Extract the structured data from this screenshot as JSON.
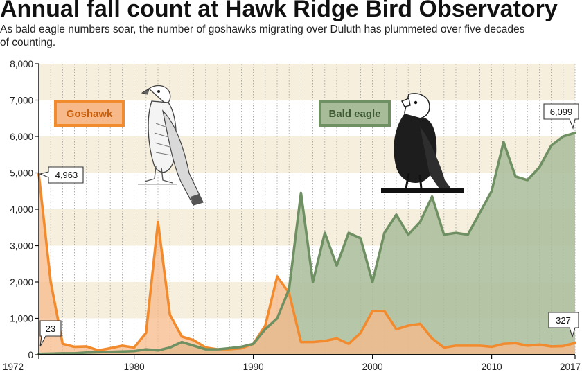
{
  "chart_data": {
    "type": "area",
    "title": "Annual fall count at Hawk Ridge Bird Observatory",
    "subtitle_line1": "As bald eagle numbers soar, the number of goshawks migrating over Duluth has plummeted over five decades",
    "subtitle_line2": "of counting.",
    "xlabel": "",
    "ylabel": "",
    "xlim": [
      1972,
      2017
    ],
    "ylim": [
      0,
      8000
    ],
    "x_ticks": [
      {
        "value": 1972,
        "label": "1972"
      },
      {
        "value": 1980,
        "label": "1980"
      },
      {
        "value": 1990,
        "label": "1990"
      },
      {
        "value": 2000,
        "label": "2000"
      },
      {
        "value": 2010,
        "label": "2010"
      },
      {
        "value": 2017,
        "label": "2017"
      }
    ],
    "y_ticks": [
      {
        "value": 0,
        "label": "0"
      },
      {
        "value": 1000,
        "label": "1,000"
      },
      {
        "value": 2000,
        "label": "2,000"
      },
      {
        "value": 3000,
        "label": "3,000"
      },
      {
        "value": 4000,
        "label": "4,000"
      },
      {
        "value": 5000,
        "label": "5,000"
      },
      {
        "value": 6000,
        "label": "6,000"
      },
      {
        "value": 7000,
        "label": "7,000"
      },
      {
        "value": 8000,
        "label": "8,000"
      }
    ],
    "grid": "vertical dotted lines each year, alternating horizontal bands",
    "x": [
      1972,
      1973,
      1974,
      1975,
      1976,
      1977,
      1978,
      1979,
      1980,
      1981,
      1982,
      1983,
      1984,
      1985,
      1986,
      1987,
      1988,
      1989,
      1990,
      1991,
      1992,
      1993,
      1994,
      1995,
      1996,
      1997,
      1998,
      1999,
      2000,
      2001,
      2002,
      2003,
      2004,
      2005,
      2006,
      2007,
      2008,
      2009,
      2010,
      2011,
      2012,
      2013,
      2014,
      2015,
      2016,
      2017
    ],
    "series": [
      {
        "name": "Goshawk",
        "color": "#f28a2e",
        "fill": "#f7b98a",
        "values": [
          4963,
          2000,
          300,
          220,
          230,
          120,
          180,
          250,
          200,
          600,
          3650,
          1100,
          500,
          400,
          200,
          150,
          150,
          180,
          300,
          800,
          2150,
          1700,
          350,
          350,
          380,
          450,
          300,
          600,
          1200,
          1200,
          700,
          800,
          850,
          450,
          200,
          250,
          250,
          250,
          220,
          300,
          320,
          250,
          280,
          230,
          240,
          327
        ]
      },
      {
        "name": "Bald eagle",
        "color": "#6f9063",
        "fill": "#a9bc9a",
        "values": [
          23,
          30,
          40,
          40,
          60,
          70,
          80,
          90,
          100,
          150,
          120,
          200,
          350,
          250,
          150,
          150,
          180,
          220,
          300,
          700,
          1000,
          1800,
          4450,
          2000,
          3350,
          2450,
          3350,
          3200,
          2000,
          3350,
          3850,
          3300,
          3650,
          4350,
          3300,
          3350,
          3300,
          3900,
          4500,
          5850,
          4900,
          4800,
          5150,
          5750,
          6000,
          6099
        ]
      }
    ],
    "annotations": [
      {
        "label": "4,963",
        "x": 1972,
        "y": 4963,
        "series": "Goshawk"
      },
      {
        "label": "23",
        "x": 1972,
        "y": 23,
        "series": "Bald eagle"
      },
      {
        "label": "6,099",
        "x": 2017,
        "y": 6099,
        "series": "Bald eagle"
      },
      {
        "label": "327",
        "x": 2017,
        "y": 327,
        "series": "Goshawk"
      }
    ],
    "legend": [
      {
        "label": "Goshawk",
        "color": "#f28a2e",
        "background": "#f7b98a",
        "position": "upper-left"
      },
      {
        "label": "Bald eagle",
        "color": "#6f9063",
        "background": "#a9bc9a",
        "position": "upper-center"
      }
    ],
    "illustrations": [
      "goshawk-illustration",
      "bald-eagle-illustration"
    ]
  }
}
